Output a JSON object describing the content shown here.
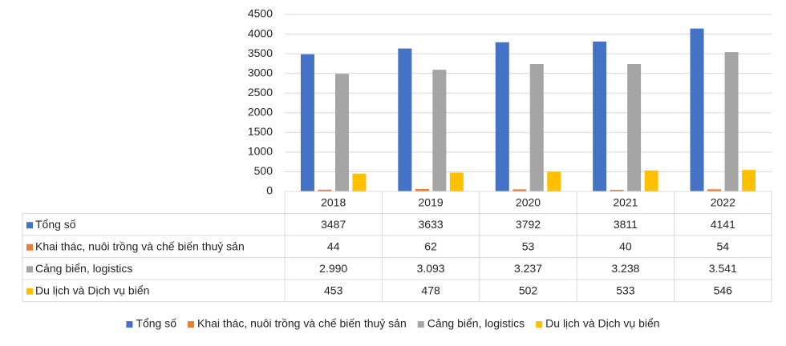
{
  "chart_data": {
    "type": "bar",
    "categories": [
      "2018",
      "2019",
      "2020",
      "2021",
      "2022"
    ],
    "series": [
      {
        "name": "Tổng số",
        "color": "#4472c4",
        "values": [
          3487,
          3633,
          3792,
          3811,
          4141
        ]
      },
      {
        "name": "Khai thác, nuôi trồng và chế biến thuỷ sản",
        "color": "#ed7d31",
        "values": [
          44,
          62,
          53,
          40,
          54
        ]
      },
      {
        "name": "Cảng biển, logistics",
        "color": "#a5a5a5",
        "values": [
          2990,
          3093,
          3237,
          3238,
          3541
        ],
        "value_labels": [
          "2.990",
          "3.093",
          "3.237",
          "3.238",
          "3.541"
        ]
      },
      {
        "name": "Du lịch và Dịch vụ biển",
        "color": "#ffc000",
        "values": [
          453,
          478,
          502,
          533,
          546
        ]
      }
    ],
    "ylim": [
      0,
      4500
    ],
    "yticks": [
      0,
      500,
      1000,
      1500,
      2000,
      2500,
      3000,
      3500,
      4000,
      4500
    ],
    "grid": true,
    "legend": "bottom",
    "data_table": true
  }
}
